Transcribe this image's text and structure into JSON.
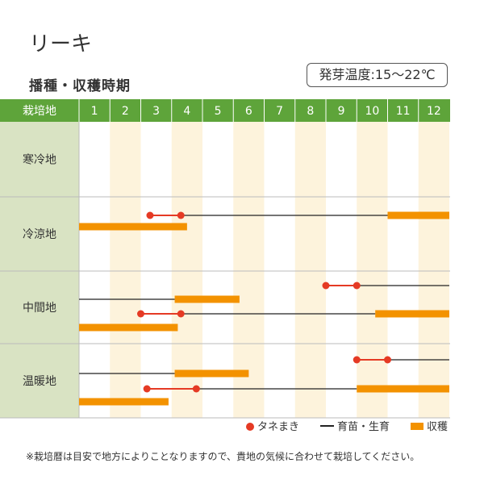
{
  "title": "リーキ",
  "subtitle": "播種・収穫時期",
  "temperature": "発芽温度:15〜22℃",
  "chart_data": {
    "type": "table",
    "header_label": "栽培地",
    "months": [
      "1",
      "2",
      "3",
      "4",
      "5",
      "6",
      "7",
      "8",
      "9",
      "10",
      "11",
      "12"
    ],
    "regions": [
      {
        "name": "寒冷地",
        "rows": []
      },
      {
        "name": "冷涼地",
        "rows": [
          {
            "sowing": [
              3.3,
              4.3
            ],
            "growing": [
              [
                4.3,
                11.0
              ]
            ],
            "harvest": [
              [
                11.0,
                13.0
              ]
            ]
          },
          {
            "harvest": [
              [
                1.0,
                4.5
              ]
            ]
          }
        ]
      },
      {
        "name": "中間地",
        "rows": [
          {
            "sowing": [
              9.0,
              10.0
            ],
            "growing": [
              [
                10.0,
                13.0
              ]
            ]
          },
          {
            "growing": [
              [
                1.0,
                4.1
              ]
            ],
            "harvest": [
              [
                4.1,
                6.2
              ]
            ]
          },
          {
            "sowing": [
              3.0,
              4.3
            ],
            "growing": [
              [
                4.3,
                10.6
              ]
            ],
            "harvest": [
              [
                10.6,
                13.0
              ]
            ]
          },
          {
            "harvest": [
              [
                1.0,
                4.2
              ]
            ]
          }
        ]
      },
      {
        "name": "温暖地",
        "rows": [
          {
            "sowing": [
              10.0,
              11.0
            ],
            "growing": [
              [
                11.0,
                13.0
              ]
            ]
          },
          {
            "growing": [
              [
                1.0,
                4.1
              ]
            ],
            "harvest": [
              [
                4.1,
                6.5
              ]
            ]
          },
          {
            "sowing": [
              3.2,
              4.8
            ],
            "growing": [
              [
                4.8,
                10.0
              ]
            ],
            "harvest": [
              [
                10.0,
                13.0
              ]
            ]
          },
          {
            "harvest": [
              [
                1.0,
                3.9
              ]
            ]
          }
        ]
      }
    ]
  },
  "legend": {
    "sowing": "タネまき",
    "growing": "育苗・生育",
    "harvest": "収穫"
  },
  "colors": {
    "header_green": "#5ea43a",
    "label_bg": "#d9e3c3",
    "stripe": "#fdf3dc",
    "sowing": "#e53a24",
    "harvest": "#f39200",
    "line": "#222222"
  },
  "footnote": "※栽培暦は目安で地方によりことなりますので、貴地の気候に合わせて栽培してください。"
}
